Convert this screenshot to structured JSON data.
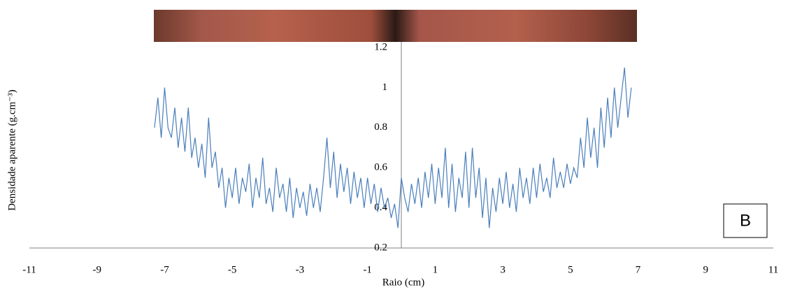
{
  "chart_data": {
    "type": "line",
    "x_label": "Raio (cm)",
    "y_label": "Densidade aparente (g.cm⁻³)",
    "annotation": "B",
    "xlim": [
      -11,
      11
    ],
    "xticks": [
      -11,
      -9,
      -7,
      -5,
      -3,
      -1,
      1,
      3,
      5,
      7,
      9,
      11
    ],
    "ylim": [
      0.2,
      1.2
    ],
    "yticks": [
      0.2,
      0.4,
      0.6,
      0.8,
      1,
      1.2
    ],
    "x": [
      -7.3,
      -7.2,
      -7.1,
      -7.0,
      -6.9,
      -6.8,
      -6.7,
      -6.6,
      -6.5,
      -6.4,
      -6.3,
      -6.2,
      -6.1,
      -6.0,
      -5.9,
      -5.8,
      -5.7,
      -5.6,
      -5.5,
      -5.4,
      -5.3,
      -5.2,
      -5.1,
      -5.0,
      -4.9,
      -4.8,
      -4.7,
      -4.6,
      -4.5,
      -4.4,
      -4.3,
      -4.2,
      -4.1,
      -4.0,
      -3.9,
      -3.8,
      -3.7,
      -3.6,
      -3.5,
      -3.4,
      -3.3,
      -3.2,
      -3.1,
      -3.0,
      -2.9,
      -2.8,
      -2.7,
      -2.6,
      -2.5,
      -2.4,
      -2.3,
      -2.2,
      -2.1,
      -2.0,
      -1.9,
      -1.8,
      -1.7,
      -1.6,
      -1.5,
      -1.4,
      -1.3,
      -1.2,
      -1.1,
      -1.0,
      -0.9,
      -0.8,
      -0.7,
      -0.6,
      -0.5,
      -0.4,
      -0.3,
      -0.2,
      -0.1,
      0,
      0.1,
      0.2,
      0.3,
      0.4,
      0.5,
      0.6,
      0.7,
      0.8,
      0.9,
      1.0,
      1.1,
      1.2,
      1.3,
      1.4,
      1.5,
      1.6,
      1.7,
      1.8,
      1.9,
      2.0,
      2.1,
      2.2,
      2.3,
      2.4,
      2.5,
      2.6,
      2.7,
      2.8,
      2.9,
      3.0,
      3.1,
      3.2,
      3.3,
      3.4,
      3.5,
      3.6,
      3.7,
      3.8,
      3.9,
      4.0,
      4.1,
      4.2,
      4.3,
      4.4,
      4.5,
      4.6,
      4.7,
      4.8,
      4.9,
      5.0,
      5.1,
      5.2,
      5.3,
      5.4,
      5.5,
      5.6,
      5.7,
      5.8,
      5.9,
      6.0,
      6.1,
      6.2,
      6.3,
      6.4,
      6.5,
      6.6,
      6.7,
      6.8
    ],
    "series": [
      {
        "color": "#4a7ebb",
        "values": [
          0.8,
          0.95,
          0.75,
          1.0,
          0.8,
          0.75,
          0.9,
          0.7,
          0.85,
          0.68,
          0.9,
          0.65,
          0.75,
          0.6,
          0.72,
          0.55,
          0.85,
          0.6,
          0.68,
          0.5,
          0.6,
          0.4,
          0.55,
          0.45,
          0.6,
          0.42,
          0.55,
          0.48,
          0.62,
          0.4,
          0.55,
          0.45,
          0.65,
          0.42,
          0.5,
          0.38,
          0.6,
          0.45,
          0.52,
          0.38,
          0.55,
          0.35,
          0.5,
          0.4,
          0.48,
          0.36,
          0.52,
          0.4,
          0.5,
          0.38,
          0.55,
          0.75,
          0.5,
          0.68,
          0.45,
          0.62,
          0.48,
          0.6,
          0.42,
          0.58,
          0.45,
          0.55,
          0.4,
          0.55,
          0.42,
          0.52,
          0.38,
          0.5,
          0.4,
          0.45,
          0.35,
          0.42,
          0.3,
          0.55,
          0.45,
          0.38,
          0.52,
          0.42,
          0.55,
          0.4,
          0.58,
          0.45,
          0.62,
          0.42,
          0.6,
          0.45,
          0.7,
          0.4,
          0.62,
          0.38,
          0.55,
          0.45,
          0.68,
          0.4,
          0.7,
          0.45,
          0.6,
          0.35,
          0.55,
          0.3,
          0.5,
          0.38,
          0.55,
          0.42,
          0.58,
          0.4,
          0.52,
          0.38,
          0.6,
          0.45,
          0.55,
          0.42,
          0.6,
          0.45,
          0.62,
          0.48,
          0.55,
          0.45,
          0.65,
          0.5,
          0.58,
          0.5,
          0.62,
          0.52,
          0.6,
          0.55,
          0.75,
          0.6,
          0.85,
          0.65,
          0.8,
          0.6,
          0.9,
          0.7,
          0.95,
          0.75,
          1.0,
          0.8,
          0.95,
          1.1,
          0.85,
          1.0
        ]
      }
    ]
  }
}
